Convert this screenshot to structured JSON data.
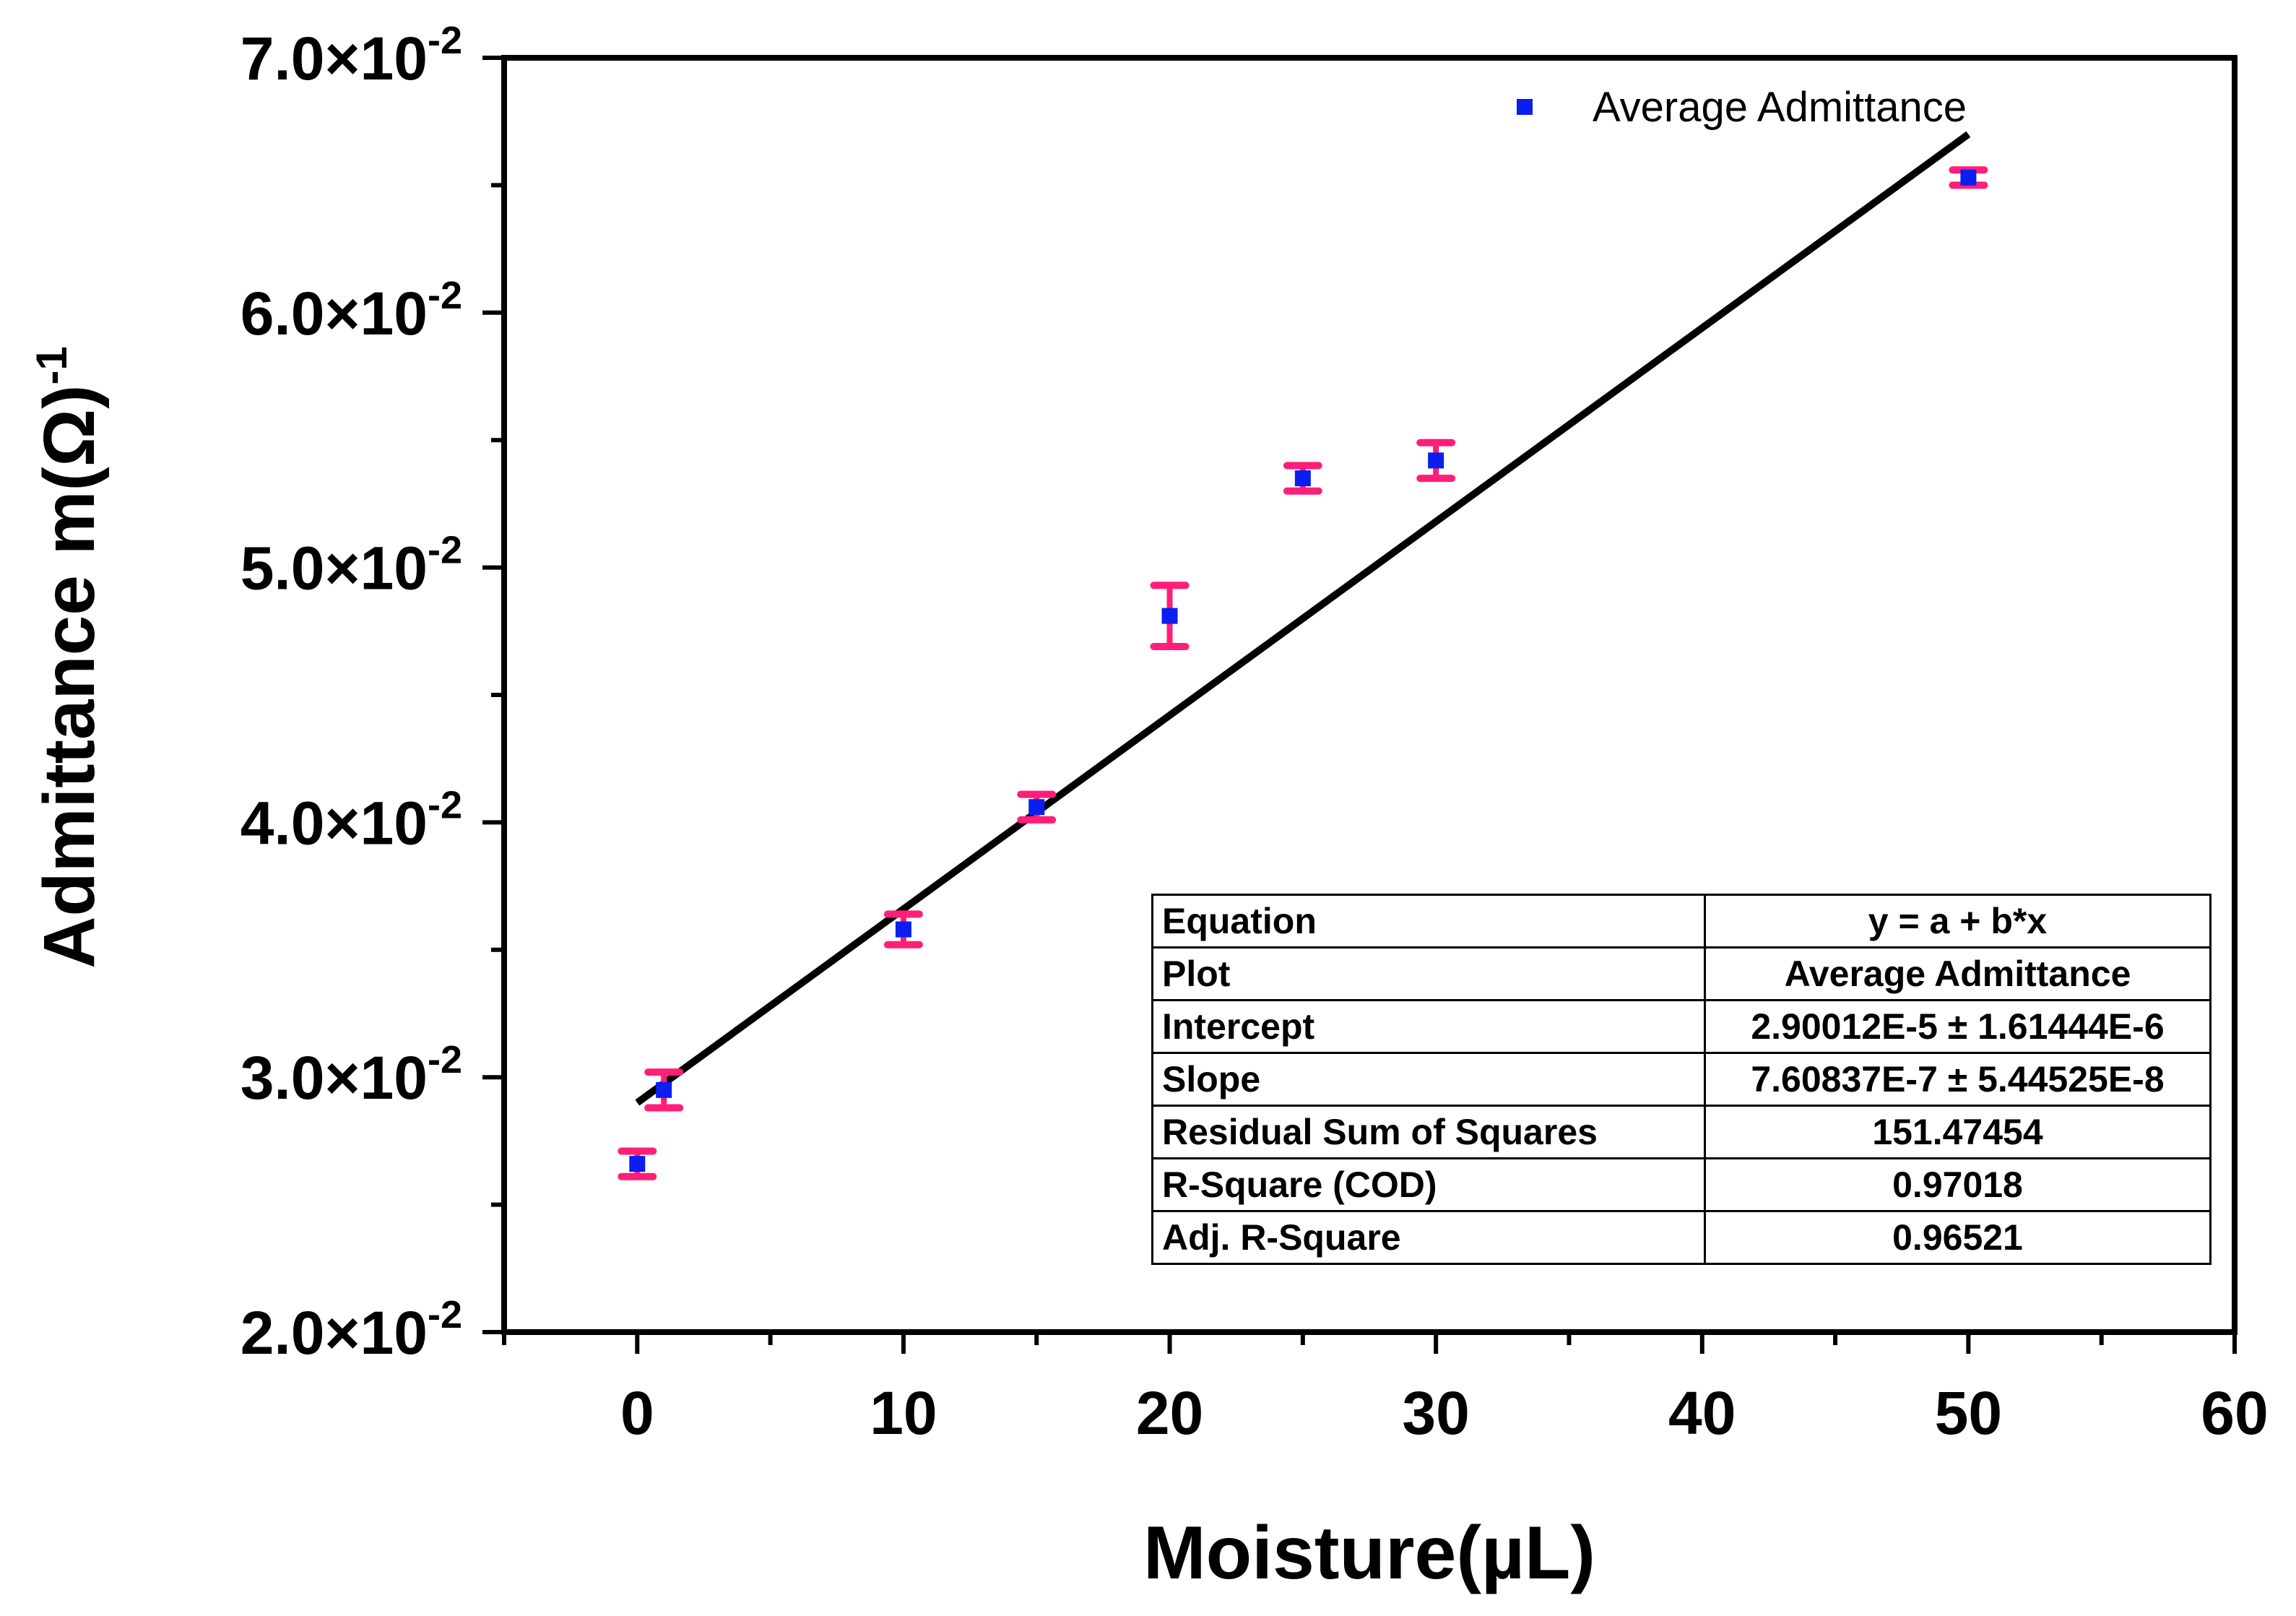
{
  "chart_data": {
    "type": "scatter",
    "title": "",
    "xlabel": "Moisture(µL)",
    "ylabel": "Admittance m(Ω)",
    "ylabel_superscript": "-1",
    "xlim": [
      -5,
      60
    ],
    "ylim": [
      0.02,
      0.07
    ],
    "x_ticks": [
      0,
      10,
      20,
      30,
      40,
      50,
      60
    ],
    "x_tick_labels": [
      "0",
      "10",
      "20",
      "30",
      "40",
      "50",
      "60"
    ],
    "y_ticks": [
      0.02,
      0.03,
      0.04,
      0.05,
      0.06,
      0.07
    ],
    "y_tick_labels": [
      {
        "mantissa": "2.0×10",
        "exponent": "-2"
      },
      {
        "mantissa": "3.0×10",
        "exponent": "-2"
      },
      {
        "mantissa": "4.0×10",
        "exponent": "-2"
      },
      {
        "mantissa": "5.0×10",
        "exponent": "-2"
      },
      {
        "mantissa": "6.0×10",
        "exponent": "-2"
      },
      {
        "mantissa": "7.0×10",
        "exponent": "-2"
      }
    ],
    "grid": false,
    "legend": {
      "position": "top-right",
      "entries": [
        "Average Admittance"
      ]
    },
    "series": [
      {
        "name": "Average Admittance",
        "color": "#0a1ef0",
        "error_color": "#ff1e78",
        "points": [
          {
            "x": 0,
            "y": 0.0266,
            "err": 0.0005
          },
          {
            "x": 1,
            "y": 0.0295,
            "err": 0.0007
          },
          {
            "x": 10,
            "y": 0.0358,
            "err": 0.0006
          },
          {
            "x": 15,
            "y": 0.0406,
            "err": 0.0005
          },
          {
            "x": 20,
            "y": 0.0481,
            "err": 0.0012
          },
          {
            "x": 25,
            "y": 0.0535,
            "err": 0.0005
          },
          {
            "x": 30,
            "y": 0.0542,
            "err": 0.0007
          },
          {
            "x": 50,
            "y": 0.0653,
            "err": 0.0003
          }
        ]
      }
    ],
    "fit_line": {
      "x": [
        0,
        50
      ],
      "y": [
        0.029,
        0.067
      ],
      "color": "#000000"
    }
  },
  "fit_table": [
    {
      "label": "Equation",
      "value": "y = a + b*x"
    },
    {
      "label": "Plot",
      "value": "Average Admittance"
    },
    {
      "label": "Intercept",
      "value": "2.90012E-5 ± 1.61444E-6"
    },
    {
      "label": "Slope",
      "value": "7.60837E-7 ± 5.44525E-8"
    },
    {
      "label": "Residual Sum of Squares",
      "value": "151.47454"
    },
    {
      "label": "R-Square (COD)",
      "value": "0.97018"
    },
    {
      "label": "Adj. R-Square",
      "value": "0.96521"
    }
  ]
}
